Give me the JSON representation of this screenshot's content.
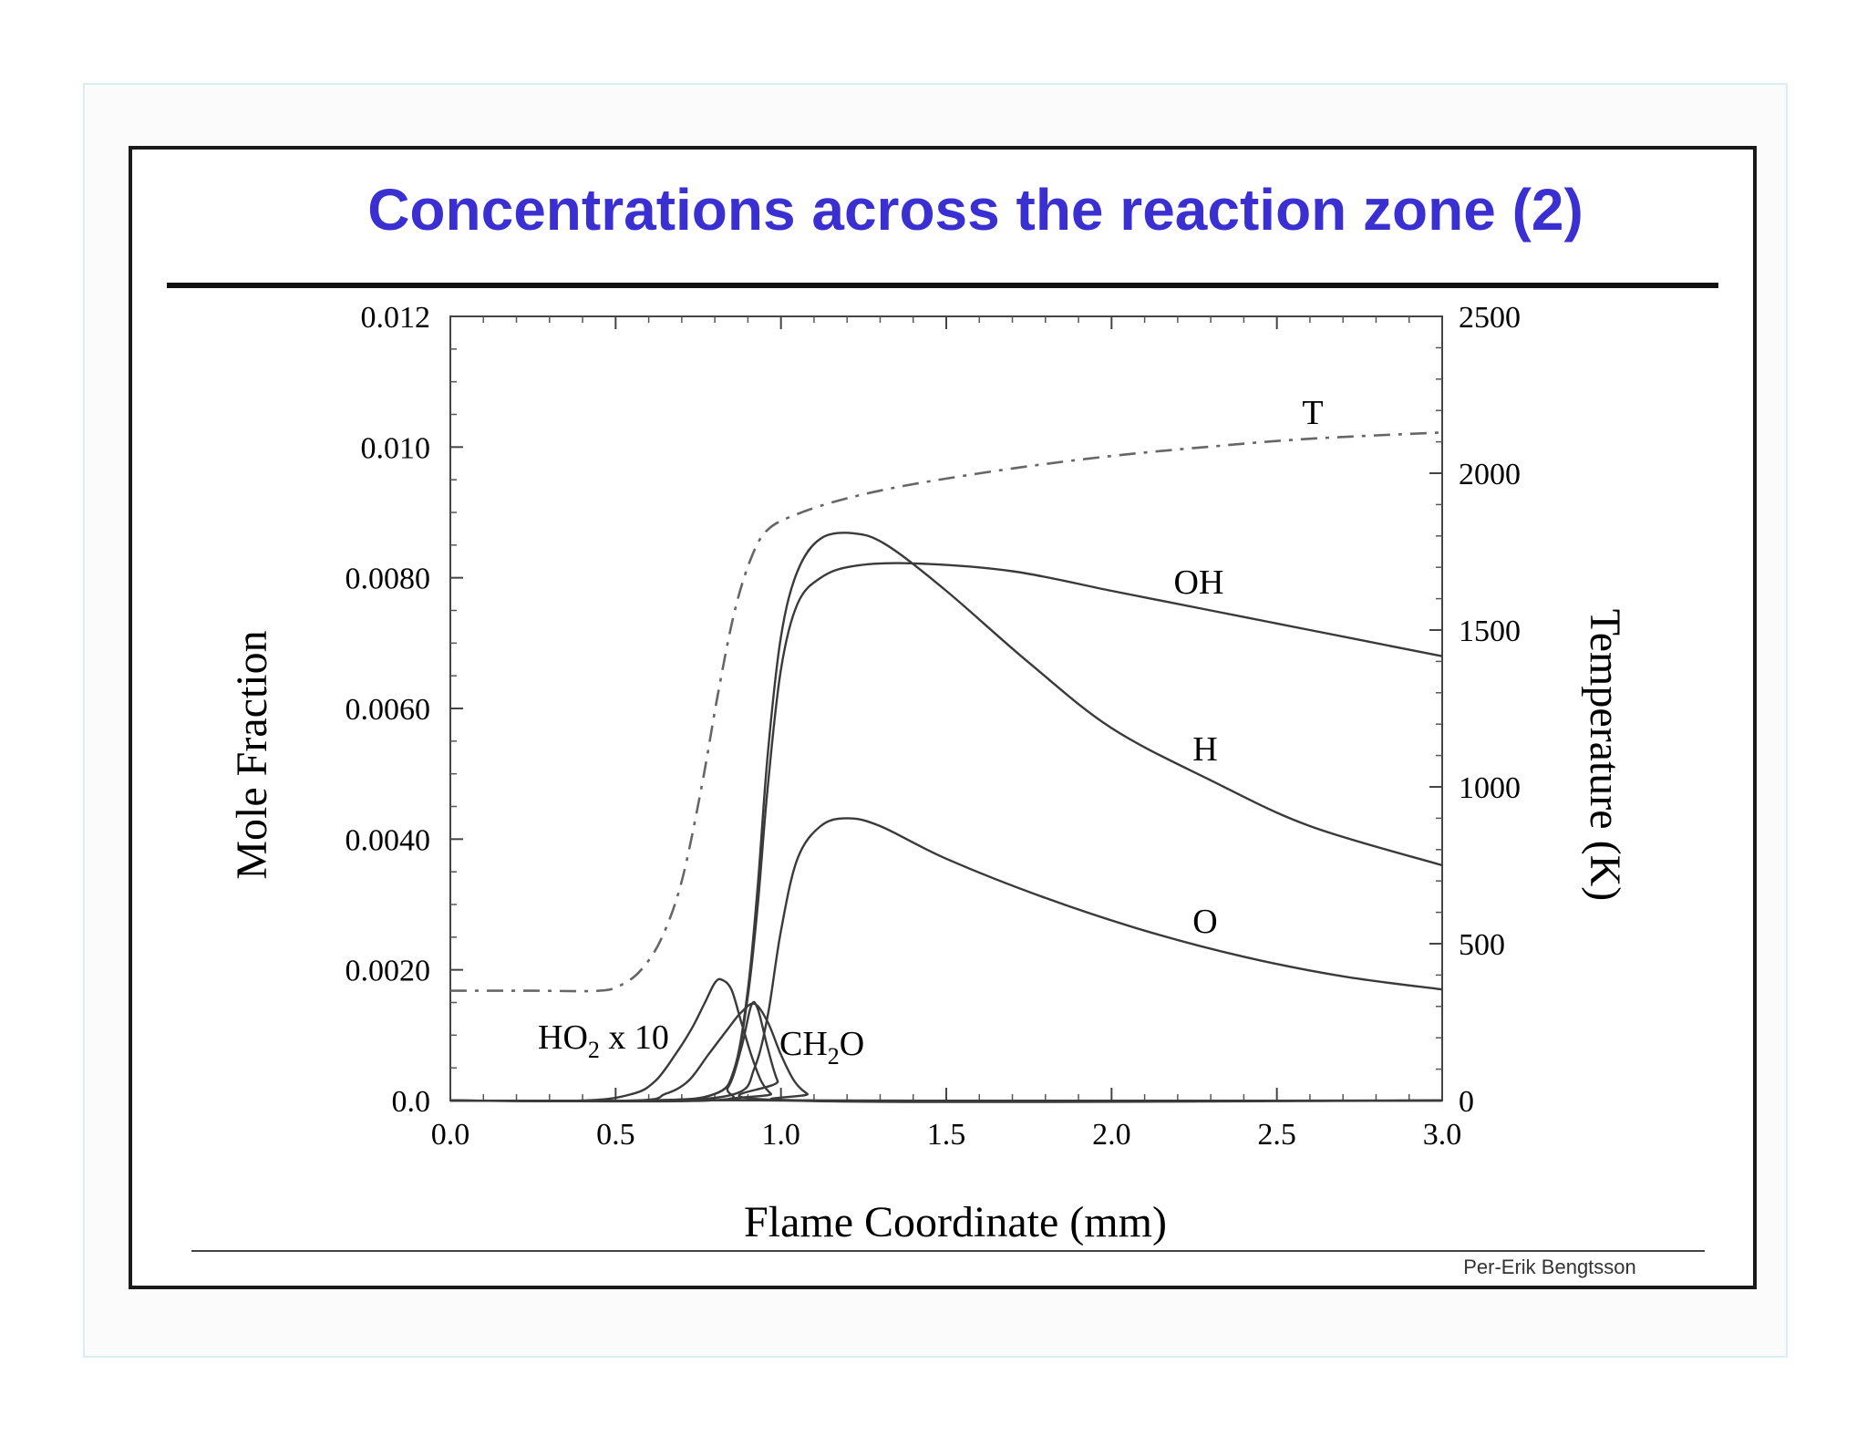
{
  "slide": {
    "title": "Concentrations across the reaction zone (2)",
    "credit": "Per-Erik Bengtsson",
    "title_color": "#3a2fd0"
  },
  "chart_data": {
    "type": "line",
    "title": "",
    "xlabel": "Flame Coordinate (mm)",
    "ylabel": "Mole Fraction",
    "y2label": "Temperature (K)",
    "xlim": [
      0.0,
      3.0
    ],
    "ylim": [
      0.0,
      0.012
    ],
    "y2lim": [
      0,
      2500
    ],
    "grid": false,
    "x_ticks": [
      "0.0",
      "0.5",
      "1.0",
      "1.5",
      "2.0",
      "2.5",
      "3.0"
    ],
    "y_ticks": [
      "0.0",
      "0.0020",
      "0.0040",
      "0.0060",
      "0.0080",
      "0.010",
      "0.012"
    ],
    "y2_ticks": [
      "0",
      "500",
      "1000",
      "1500",
      "2000",
      "2500"
    ],
    "series": [
      {
        "name": "T",
        "axis": "right",
        "style": "dashdot",
        "points": [
          [
            0.0,
            350
          ],
          [
            0.25,
            350
          ],
          [
            0.45,
            350
          ],
          [
            0.52,
            370
          ],
          [
            0.58,
            420
          ],
          [
            0.64,
            520
          ],
          [
            0.7,
            700
          ],
          [
            0.76,
            1000
          ],
          [
            0.81,
            1300
          ],
          [
            0.86,
            1560
          ],
          [
            0.91,
            1730
          ],
          [
            0.96,
            1820
          ],
          [
            1.05,
            1870
          ],
          [
            1.2,
            1920
          ],
          [
            1.4,
            1965
          ],
          [
            1.7,
            2015
          ],
          [
            2.0,
            2055
          ],
          [
            2.3,
            2085
          ],
          [
            2.6,
            2110
          ],
          [
            3.0,
            2130
          ]
        ]
      },
      {
        "name": "OH",
        "axis": "left",
        "style": "solid",
        "points": [
          [
            0.0,
            0.0
          ],
          [
            0.6,
            0.0
          ],
          [
            0.8,
            0.0001
          ],
          [
            0.86,
            0.0005
          ],
          [
            0.9,
            0.0016
          ],
          [
            0.93,
            0.003
          ],
          [
            0.96,
            0.0048
          ],
          [
            1.0,
            0.0066
          ],
          [
            1.05,
            0.0076
          ],
          [
            1.12,
            0.008
          ],
          [
            1.22,
            0.00818
          ],
          [
            1.4,
            0.00822
          ],
          [
            1.7,
            0.0081
          ],
          [
            2.0,
            0.0078
          ],
          [
            2.3,
            0.0075
          ],
          [
            2.6,
            0.0072
          ],
          [
            3.0,
            0.0068
          ]
        ]
      },
      {
        "name": "H",
        "axis": "left",
        "style": "solid",
        "points": [
          [
            0.0,
            0.0
          ],
          [
            0.6,
            0.0
          ],
          [
            0.8,
            0.0001
          ],
          [
            0.86,
            0.0005
          ],
          [
            0.9,
            0.0017
          ],
          [
            0.93,
            0.0033
          ],
          [
            0.96,
            0.0053
          ],
          [
            1.0,
            0.0071
          ],
          [
            1.05,
            0.0081
          ],
          [
            1.12,
            0.0086
          ],
          [
            1.22,
            0.00868
          ],
          [
            1.32,
            0.0085
          ],
          [
            1.5,
            0.0078
          ],
          [
            1.75,
            0.0067
          ],
          [
            2.0,
            0.0057
          ],
          [
            2.3,
            0.0049
          ],
          [
            2.6,
            0.0042
          ],
          [
            3.0,
            0.0036
          ]
        ]
      },
      {
        "name": "O",
        "axis": "left",
        "style": "solid",
        "points": [
          [
            0.0,
            0.0
          ],
          [
            0.6,
            0.0
          ],
          [
            0.86,
            0.0001
          ],
          [
            0.92,
            0.0005
          ],
          [
            0.96,
            0.0013
          ],
          [
            1.0,
            0.0026
          ],
          [
            1.05,
            0.0037
          ],
          [
            1.12,
            0.0042
          ],
          [
            1.2,
            0.00432
          ],
          [
            1.3,
            0.0042
          ],
          [
            1.5,
            0.0037
          ],
          [
            1.8,
            0.0031
          ],
          [
            2.1,
            0.0026
          ],
          [
            2.4,
            0.0022
          ],
          [
            2.7,
            0.0019
          ],
          [
            3.0,
            0.0017
          ]
        ]
      },
      {
        "name": "HO2 x 10",
        "axis": "left",
        "style": "solid",
        "points": [
          [
            0.0,
            0.0
          ],
          [
            0.4,
            0.0
          ],
          [
            0.55,
            0.0001
          ],
          [
            0.62,
            0.0003
          ],
          [
            0.68,
            0.0007
          ],
          [
            0.73,
            0.0011
          ],
          [
            0.77,
            0.0015
          ],
          [
            0.8,
            0.0018
          ],
          [
            0.82,
            0.00185
          ],
          [
            0.85,
            0.0017
          ],
          [
            0.88,
            0.0012
          ],
          [
            0.91,
            0.0007
          ],
          [
            0.94,
            0.0003
          ],
          [
            0.97,
            0.0001
          ],
          [
            1.0,
            0.0
          ],
          [
            3.0,
            0.0
          ]
        ]
      },
      {
        "name": "CH2O",
        "axis": "left",
        "style": "solid",
        "points": [
          [
            0.0,
            0.0
          ],
          [
            0.55,
            0.0
          ],
          [
            0.65,
            0.0001
          ],
          [
            0.72,
            0.0003
          ],
          [
            0.78,
            0.0007
          ],
          [
            0.84,
            0.0011
          ],
          [
            0.88,
            0.00135
          ],
          [
            0.92,
            0.00148
          ],
          [
            0.96,
            0.0012
          ],
          [
            1.0,
            0.0007
          ],
          [
            1.04,
            0.0003
          ],
          [
            1.08,
            0.0001
          ],
          [
            1.12,
            0.0
          ],
          [
            3.0,
            0.0
          ]
        ]
      },
      {
        "name": "",
        "axis": "left",
        "style": "solid",
        "points": [
          [
            0.0,
            0.0
          ],
          [
            0.78,
            0.0
          ],
          [
            0.84,
            0.0002
          ],
          [
            0.88,
            0.0008
          ],
          [
            0.91,
            0.00145
          ],
          [
            0.93,
            0.0014
          ],
          [
            0.96,
            0.0008
          ],
          [
            0.99,
            0.0003
          ],
          [
            1.03,
            0.0
          ],
          [
            3.0,
            0.0
          ]
        ]
      }
    ],
    "labels": [
      {
        "text_main": "T",
        "sub": "",
        "text_tail": ""
      },
      {
        "text_main": "OH",
        "sub": "",
        "text_tail": ""
      },
      {
        "text_main": "H",
        "sub": "",
        "text_tail": ""
      },
      {
        "text_main": "O",
        "sub": "",
        "text_tail": ""
      },
      {
        "text_main": "HO",
        "sub": "2",
        "text_tail": " x 10"
      },
      {
        "text_main": "CH",
        "sub": "2",
        "text_tail": "O"
      }
    ]
  }
}
